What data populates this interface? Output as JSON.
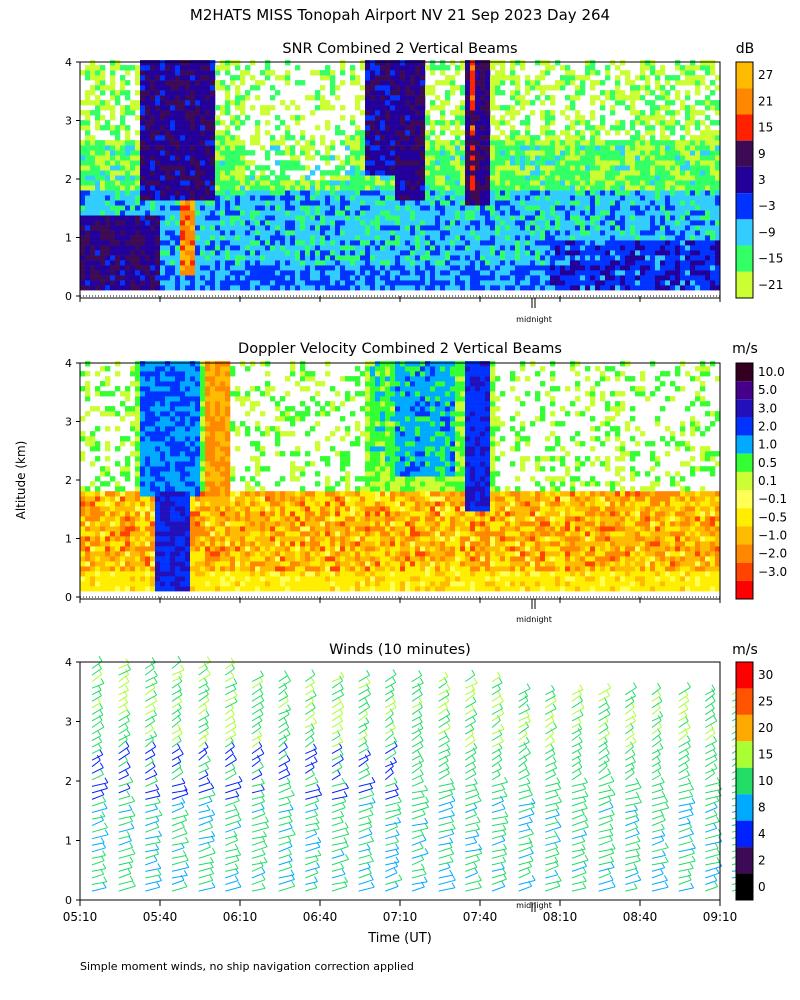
{
  "page": {
    "title": "M2HATS MISS Tonopah Airport NV  21 Sep 2023 Day 264",
    "y_axis_label": "Altitude (km)",
    "x_axis_label": "Time (UT)",
    "footnote": "Simple moment winds, no ship navigation correction applied",
    "midnight_label": "midnight"
  },
  "colors": {
    "snr_scale": [
      "#ccff33",
      "#33ff66",
      "#33ccff",
      "#0033ff",
      "#220099",
      "#3d0a55",
      "#ff2200",
      "#ff8800",
      "#ffbb00"
    ],
    "vel_scale": [
      "#ff0000",
      "#ff4400",
      "#ff8800",
      "#ffbb00",
      "#ffee00",
      "#ffff55",
      "#ccff33",
      "#33ff33",
      "#00aaff",
      "#0033ff",
      "#2211bb",
      "#440088",
      "#330022"
    ],
    "wind_scale": [
      "#000000",
      "#3d0a55",
      "#0022ff",
      "#00aaff",
      "#22dd66",
      "#aaff33",
      "#ffaa00",
      "#ff5500",
      "#ff0000"
    ]
  },
  "chart_data": [
    {
      "type": "heatmap",
      "title": "SNR Combined 2 Vertical Beams",
      "unit": "dB",
      "xlim": [
        "05:10",
        "09:10"
      ],
      "ylim": [
        0,
        4
      ],
      "yticks": [
        "0",
        "1",
        "2",
        "3",
        "4"
      ],
      "colorbar_ticks": [
        "27",
        "21",
        "15",
        "9",
        "3",
        "−3",
        "−9",
        "−15",
        "−21"
      ]
    },
    {
      "type": "heatmap",
      "title": "Doppler Velocity Combined 2 Vertical Beams",
      "unit": "m/s",
      "xlim": [
        "05:10",
        "09:10"
      ],
      "ylim": [
        0,
        4
      ],
      "yticks": [
        "0",
        "1",
        "2",
        "3",
        "4"
      ],
      "colorbar_ticks": [
        "10.0",
        "5.0",
        "3.0",
        "2.0",
        "1.0",
        "0.5",
        "0.1",
        "−0.1",
        "−0.5",
        "−1.0",
        "−2.0",
        "−3.0"
      ]
    },
    {
      "type": "scatter",
      "title": "Winds (10 minutes)",
      "unit": "m/s",
      "xlim": [
        "05:10",
        "09:10"
      ],
      "ylim": [
        0,
        4
      ],
      "yticks": [
        "0",
        "1",
        "2",
        "3",
        "4"
      ],
      "xticks": [
        "05:10",
        "05:40",
        "06:10",
        "06:40",
        "07:10",
        "07:40",
        "08:10",
        "08:40",
        "09:10"
      ],
      "colorbar_ticks": [
        "30",
        "25",
        "20",
        "15",
        "10",
        "8",
        "4",
        "2",
        "0"
      ]
    }
  ]
}
